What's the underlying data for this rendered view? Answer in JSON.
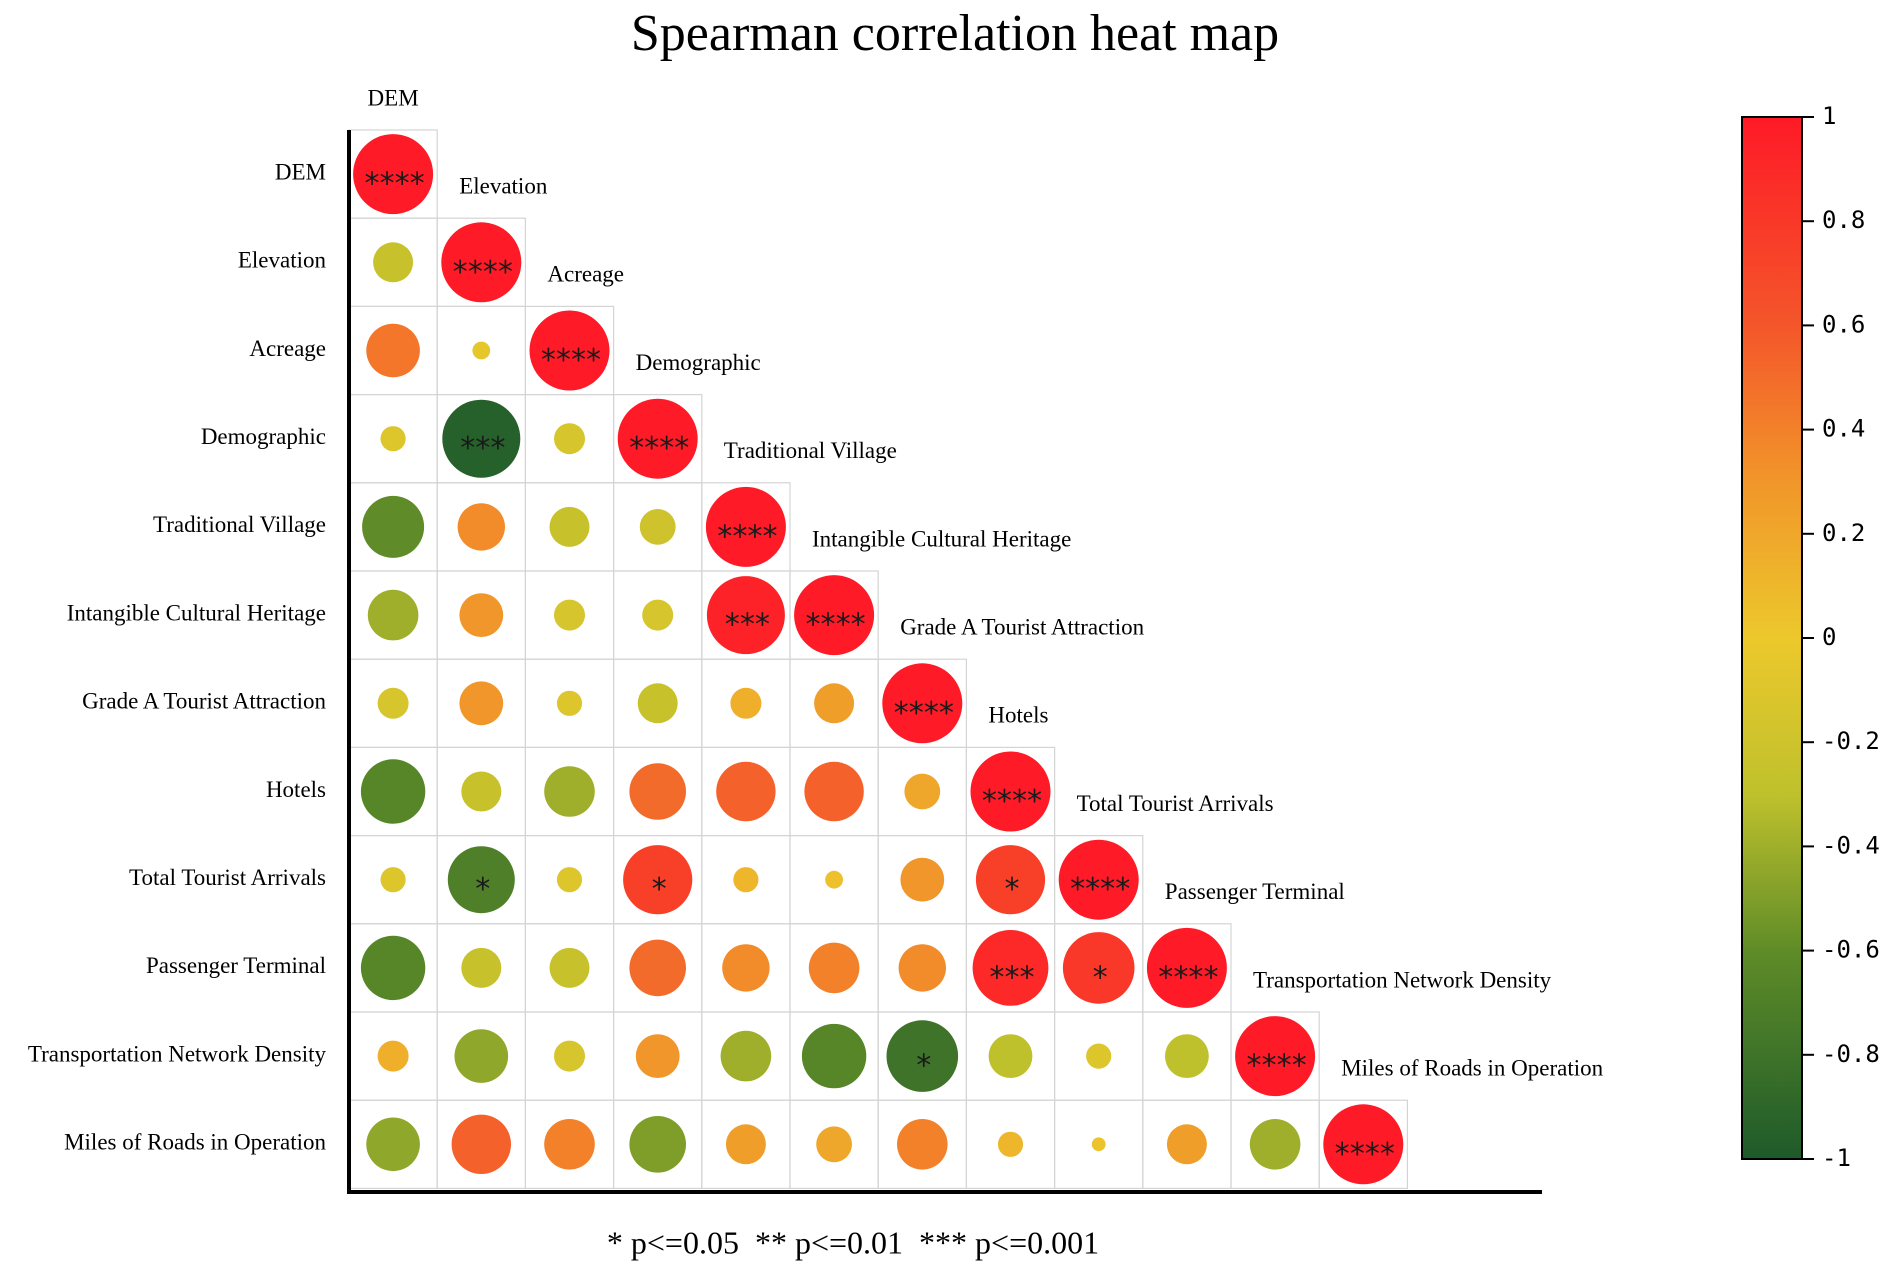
{
  "chart_data": {
    "type": "heatmap",
    "title": "Spearman correlation heat map",
    "variables": [
      "DEM",
      "Elevation",
      "Acreage",
      "Demographic",
      "Traditional Village",
      "Intangible Cultural Heritage",
      "Grade A Tourist Attraction",
      "Hotels",
      "Total Tourist Arrivals",
      "Passenger Terminal",
      "Transportation Network Density",
      "Miles of Roads in Operation"
    ],
    "matrix": [
      [
        1.0
      ],
      [
        -0.25,
        1.0
      ],
      [
        0.45,
        -0.05,
        1.0
      ],
      [
        -0.1,
        -0.95,
        -0.15,
        1.0
      ],
      [
        -0.6,
        0.35,
        -0.25,
        -0.2,
        1.0
      ],
      [
        -0.4,
        0.3,
        -0.15,
        -0.15,
        0.95,
        1.0
      ],
      [
        -0.15,
        0.3,
        -0.1,
        -0.25,
        0.15,
        0.25,
        1.0
      ],
      [
        -0.65,
        -0.25,
        -0.4,
        0.5,
        0.55,
        0.55,
        0.2,
        1.0
      ],
      [
        -0.1,
        -0.7,
        -0.1,
        0.75,
        0.1,
        0.05,
        0.3,
        0.75,
        1.0
      ],
      [
        -0.65,
        -0.25,
        -0.25,
        0.5,
        0.35,
        0.4,
        0.35,
        0.9,
        0.8,
        1.0
      ],
      [
        0.15,
        -0.45,
        -0.15,
        0.3,
        -0.4,
        -0.65,
        -0.8,
        -0.3,
        -0.1,
        -0.3,
        1.0
      ],
      [
        -0.45,
        0.55,
        0.4,
        -0.5,
        0.25,
        0.2,
        0.4,
        0.1,
        0.03,
        0.25,
        -0.4,
        1.0
      ]
    ],
    "significance": [
      [
        "****"
      ],
      [
        "",
        "****"
      ],
      [
        "",
        "",
        "****"
      ],
      [
        "",
        "***",
        "",
        "****"
      ],
      [
        "",
        "",
        "",
        "",
        "****"
      ],
      [
        "",
        "",
        "",
        "",
        "***",
        "****"
      ],
      [
        "",
        "",
        "",
        "",
        "",
        "",
        "****"
      ],
      [
        "",
        "",
        "",
        "",
        "",
        "",
        "",
        "****"
      ],
      [
        "",
        "*",
        "",
        "*",
        "",
        "",
        "",
        "*",
        "****"
      ],
      [
        "",
        "",
        "",
        "",
        "",
        "",
        "",
        "***",
        "*",
        "****"
      ],
      [
        "",
        "",
        "",
        "",
        "",
        "",
        "*",
        "",
        "",
        "",
        "****"
      ],
      [
        "",
        "",
        "",
        "",
        "",
        "",
        "",
        "",
        "",
        "",
        "",
        "****"
      ]
    ],
    "colorbar": {
      "min": -1,
      "max": 1,
      "ticks": [
        "1",
        "0.8",
        "0.6",
        "0.4",
        "0.2",
        "0",
        "-0.2",
        "-0.4",
        "-0.6",
        "-0.8",
        "-1"
      ],
      "tick_values": [
        1,
        0.8,
        0.6,
        0.4,
        0.2,
        0,
        -0.2,
        -0.4,
        -0.6,
        -0.8,
        -1
      ],
      "colors": [
        "#1e5a2a",
        "#5f8c28",
        "#bfc12c",
        "#ecc82c",
        "#f1962a",
        "#f4562a",
        "#fe1a27"
      ],
      "stops": [
        -1,
        -0.6,
        -0.3,
        0,
        0.3,
        0.6,
        1
      ]
    },
    "footnote": "* p<=0.05  ** p<=0.01  *** p<=0.001"
  }
}
